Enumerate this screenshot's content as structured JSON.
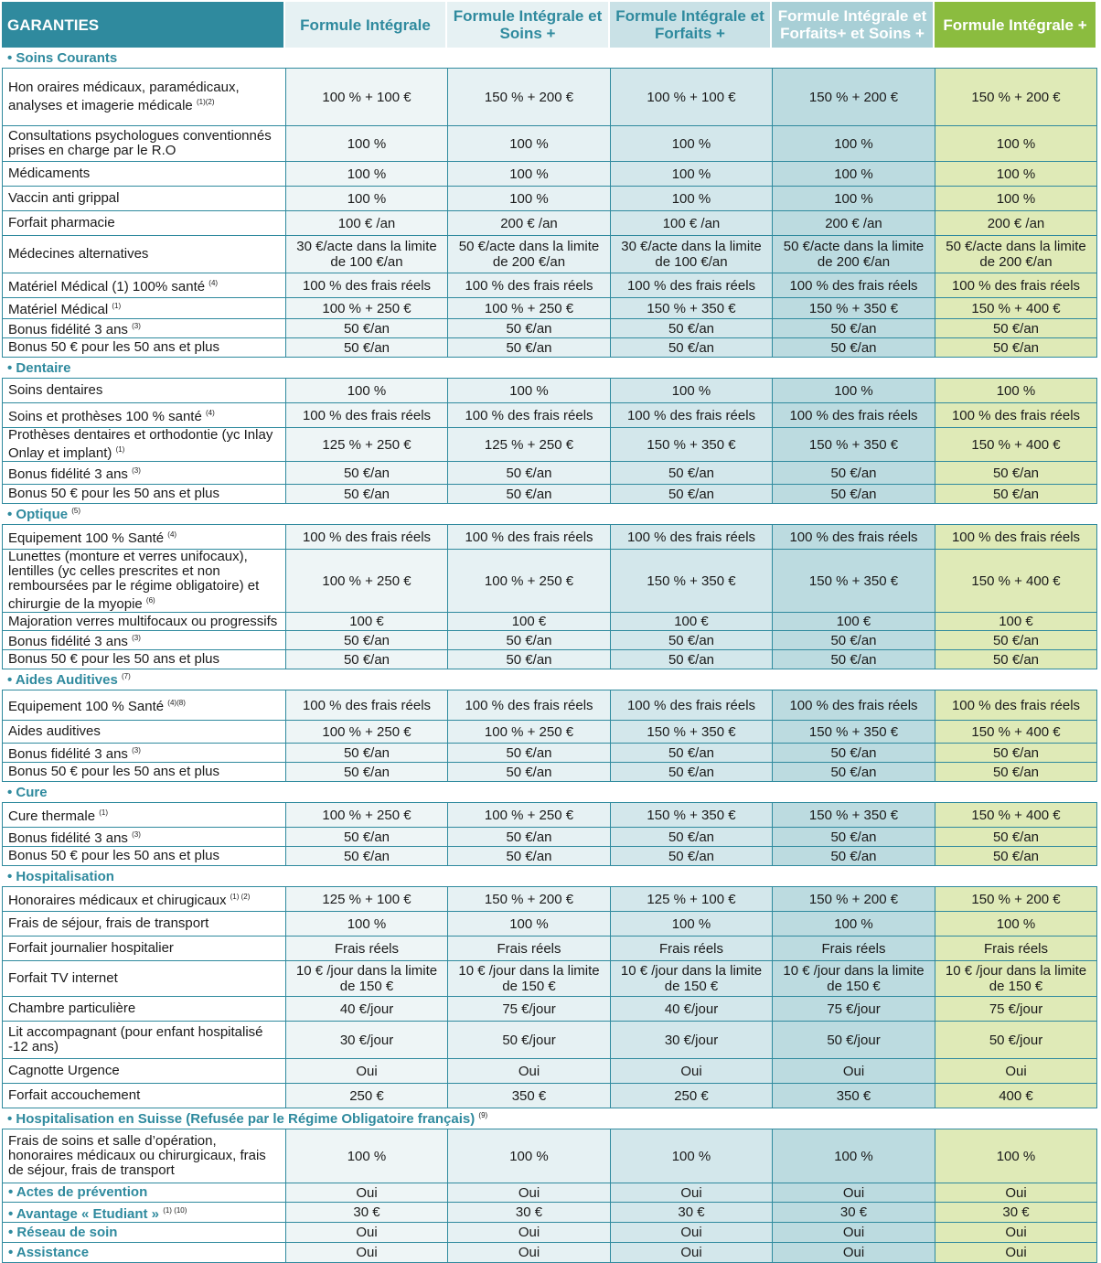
{
  "header": {
    "garanties": "GARANTIES",
    "columns": [
      "Formule Intégrale",
      "Formule Intégrale et Soins +",
      "Formule Intégrale et Forfaits +",
      "Formule Intégrale et Forfaits+ et Soins +",
      "Formule Intégrale +"
    ]
  },
  "sections": [
    {
      "title": "• Soins Courants",
      "sup": "",
      "rows": [
        {
          "label": "Hon oraires médicaux, paramédicaux, analyses et imagerie médicale",
          "sup": "(1)(2)",
          "values": [
            "100 % + 100 €",
            "150 % + 200 €",
            "100 % + 100 €",
            "150 % + 200 €",
            "150 % + 200 €"
          ],
          "h": 62
        },
        {
          "label": "Consultations psychologues conventionnés prises en charge par le R.O",
          "sup": "",
          "values": [
            "100 %",
            "100 %",
            "100 %",
            "100 %",
            "100 %"
          ],
          "h": 38
        },
        {
          "label": "Médicaments",
          "sup": "",
          "values": [
            "100 %",
            "100 %",
            "100 %",
            "100 %",
            "100 %"
          ],
          "h": 26
        },
        {
          "label": "Vaccin anti grippal",
          "sup": "",
          "values": [
            "100 %",
            "100 %",
            "100 %",
            "100 %",
            "100 %"
          ],
          "h": 26
        },
        {
          "label": "Forfait pharmacie",
          "sup": "",
          "values": [
            "100 € /an",
            "200 € /an",
            "100 € /an",
            "200 € /an",
            "200 € /an"
          ],
          "h": 26
        },
        {
          "label": "Médecines alternatives",
          "sup": "",
          "values": [
            "30 €/acte dans la limite de 100 €/an",
            "50 €/acte dans la limite de 200 €/an",
            "30 €/acte dans la limite de 100 €/an",
            "50 €/acte dans la limite de 200 €/an",
            "50 €/acte dans la limite de 200 €/an"
          ],
          "h": 40
        },
        {
          "label": "Matériel Médical (1) 100% santé",
          "sup": "(4)",
          "values": [
            "100 % des frais réels",
            "100 % des frais réels",
            "100 % des frais réels",
            "100 % des frais réels",
            "100 % des frais réels"
          ],
          "h": 26
        },
        {
          "label": "Matériel Médical",
          "sup": "(1)",
          "values": [
            "100 % + 250 €",
            "100 % + 250 €",
            "150 % + 350 €",
            "150 % + 350 €",
            "150 % + 400 €"
          ],
          "h": 22
        },
        {
          "label": "Bonus fidélité 3 ans",
          "sup": "(3)",
          "values": [
            "50 €/an",
            "50 €/an",
            "50 €/an",
            "50 €/an",
            "50 €/an"
          ],
          "h": 20
        },
        {
          "label": "Bonus 50 € pour les 50 ans et plus",
          "sup": "",
          "values": [
            "50 €/an",
            "50 €/an",
            "50 €/an",
            "50 €/an",
            "50 €/an"
          ],
          "h": 20
        }
      ]
    },
    {
      "title": "• Dentaire",
      "sup": "",
      "rows": [
        {
          "label": "Soins dentaires",
          "sup": "",
          "values": [
            "100 %",
            "100 %",
            "100 %",
            "100 %",
            "100 %"
          ],
          "h": 26
        },
        {
          "label": "Soins et prothèses 100 % santé",
          "sup": "(4)",
          "values": [
            "100 % des frais réels",
            "100 % des frais réels",
            "100 % des frais réels",
            "100 % des frais réels",
            "100 % des frais réels"
          ],
          "h": 26
        },
        {
          "label": "Prothèses dentaires et orthodontie (yc Inlay Onlay et implant)",
          "sup": "(1)",
          "values": [
            "125 % + 250 €",
            "125 % + 250 €",
            "150 % + 350 €",
            "150 % + 350 €",
            "150 % + 400 €"
          ],
          "h": 36
        },
        {
          "label": "Bonus fidélité 3 ans",
          "sup": "(3)",
          "values": [
            "50 €/an",
            "50 €/an",
            "50 €/an",
            "50 €/an",
            "50 €/an"
          ],
          "h": 24
        },
        {
          "label": "Bonus 50 € pour les 50 ans et plus",
          "sup": "",
          "values": [
            "50 €/an",
            "50 €/an",
            "50 €/an",
            "50 €/an",
            "50 €/an"
          ],
          "h": 20
        }
      ]
    },
    {
      "title": "• Optique",
      "sup": "(5)",
      "rows": [
        {
          "label": "Equipement 100 % Santé",
          "sup": "(4)",
          "values": [
            "100 % des frais réels",
            "100 % des frais réels",
            "100 % des frais réels",
            "100 % des frais réels",
            "100 % des frais réels"
          ],
          "h": 26
        },
        {
          "label": "Lunettes (monture et verres unifocaux), lentilles (yc celles prescrites et non remboursées par le régime obligatoire) et chirurgie de la myopie",
          "sup": "(6)",
          "values": [
            "100 % + 250 €",
            "100 % + 250 €",
            "150 % + 350 €",
            "150 % + 350 €",
            "150 % + 400 €"
          ],
          "h": 54
        },
        {
          "label": "Majoration verres multifocaux ou progressifs",
          "sup": "",
          "values": [
            "100 €",
            "100 €",
            "100 €",
            "100 €",
            "100 €"
          ],
          "h": 19
        },
        {
          "label": "Bonus fidélité 3 ans",
          "sup": "(3)",
          "values": [
            "50 €/an",
            "50 €/an",
            "50 €/an",
            "50 €/an",
            "50 €/an"
          ],
          "h": 20
        },
        {
          "label": "Bonus 50 € pour les 50 ans et plus",
          "sup": "",
          "values": [
            "50 €/an",
            "50 €/an",
            "50 €/an",
            "50 €/an",
            "50 €/an"
          ],
          "h": 20
        }
      ]
    },
    {
      "title": "• Aides Auditives",
      "sup": "(7)",
      "rows": [
        {
          "label": "Equipement 100 % Santé",
          "sup": "(4)(8)",
          "values": [
            "100 % des frais réels",
            "100 % des frais réels",
            "100 % des frais réels",
            "100 % des frais réels",
            "100 % des frais réels"
          ],
          "h": 32
        },
        {
          "label": "Aides auditives",
          "sup": "",
          "values": [
            "100 % + 250 €",
            "100 % + 250 €",
            "150 % + 350 €",
            "150 % + 350 €",
            "150 % + 400 €"
          ],
          "h": 24
        },
        {
          "label": "Bonus fidélité 3 ans",
          "sup": "(3)",
          "values": [
            "50 €/an",
            "50 €/an",
            "50 €/an",
            "50 €/an",
            "50 €/an"
          ],
          "h": 20
        },
        {
          "label": "Bonus 50 € pour les 50 ans et plus",
          "sup": "",
          "values": [
            "50 €/an",
            "50 €/an",
            "50 €/an",
            "50 €/an",
            "50 €/an"
          ],
          "h": 20
        }
      ]
    },
    {
      "title": "• Cure",
      "sup": "",
      "rows": [
        {
          "label": "Cure thermale",
          "sup": "(1)",
          "values": [
            "100 % + 250 €",
            "100 % + 250 €",
            "150 % + 350 €",
            "150 % + 350 €",
            "150 % + 400 €"
          ],
          "h": 26
        },
        {
          "label": "Bonus fidélité 3 ans",
          "sup": "(3)",
          "values": [
            "50 €/an",
            "50 €/an",
            "50 €/an",
            "50 €/an",
            "50 €/an"
          ],
          "h": 20
        },
        {
          "label": "Bonus 50 € pour les 50 ans et plus",
          "sup": "",
          "values": [
            "50 €/an",
            "50 €/an",
            "50 €/an",
            "50 €/an",
            "50 €/an"
          ],
          "h": 20
        }
      ]
    },
    {
      "title": "• Hospitalisation",
      "sup": "",
      "rows": [
        {
          "label": "Honoraires médicaux et chirugicaux",
          "sup": "(1) (2)",
          "values": [
            "125 % + 100 €",
            "150 % + 200 €",
            "125 % + 100 €",
            "150 % + 200 €",
            "150 % + 200 €"
          ],
          "h": 26
        },
        {
          "label": "Frais de séjour, frais de transport",
          "sup": "",
          "values": [
            "100 %",
            "100 %",
            "100 %",
            "100 %",
            "100 %"
          ],
          "h": 26
        },
        {
          "label": "Forfait journalier hospitalier",
          "sup": "",
          "values": [
            "Frais réels",
            "Frais réels",
            "Frais réels",
            "Frais réels",
            "Frais réels"
          ],
          "h": 26
        },
        {
          "label": "Forfait TV internet",
          "sup": "",
          "values": [
            "10 € /jour dans la limite de 150 €",
            "10 € /jour dans la limite de 150 €",
            "10 € /jour dans la limite de 150 €",
            "10 € /jour dans la limite de 150 €",
            "10 € /jour dans la limite de 150 €"
          ],
          "h": 38
        },
        {
          "label": "Chambre particulière",
          "sup": "",
          "values": [
            "40 €/jour",
            "75 €/jour",
            "40 €/jour",
            "75 €/jour",
            "75 €/jour"
          ],
          "h": 26
        },
        {
          "label": "Lit accompagnant (pour enfant hospitalisé -12 ans)",
          "sup": "",
          "values": [
            "30 €/jour",
            "50 €/jour",
            "30 €/jour",
            "50 €/jour",
            "50 €/jour"
          ],
          "h": 40
        },
        {
          "label": "Cagnotte Urgence",
          "sup": "",
          "values": [
            "Oui",
            "Oui",
            "Oui",
            "Oui",
            "Oui"
          ],
          "h": 26
        },
        {
          "label": "Forfait accouchement",
          "sup": "",
          "values": [
            "250 €",
            "350 €",
            "250 €",
            "350 €",
            "400 €"
          ],
          "h": 26
        }
      ]
    },
    {
      "title": "• Hospitalisation en Suisse (Refusée par le Régime Obligatoire français)",
      "sup": "(9)",
      "rows": [
        {
          "label": "Frais de soins et salle d’opération, honoraires médicaux ou chirurgicaux, frais de séjour, frais de transport",
          "sup": "",
          "values": [
            "100 %",
            "100 %",
            "100 %",
            "100 %",
            "100 %"
          ],
          "h": 58
        }
      ]
    }
  ],
  "simple_rows": [
    {
      "label": "• Actes de prévention",
      "sup": "",
      "values": [
        "Oui",
        "Oui",
        "Oui",
        "Oui",
        "Oui"
      ],
      "h": 20
    },
    {
      "label": "• Avantage « Etudiant »",
      "sup": "(1) (10)",
      "values": [
        "30 €",
        "30 €",
        "30 €",
        "30 €",
        "30 €"
      ],
      "h": 21
    },
    {
      "label": "• Réseau de soin",
      "sup": "",
      "values": [
        "Oui",
        "Oui",
        "Oui",
        "Oui",
        "Oui"
      ],
      "h": 21
    },
    {
      "label": "• Assistance",
      "sup": "",
      "values": [
        "Oui",
        "Oui",
        "Oui",
        "Oui",
        "Oui"
      ],
      "h": 21
    }
  ]
}
